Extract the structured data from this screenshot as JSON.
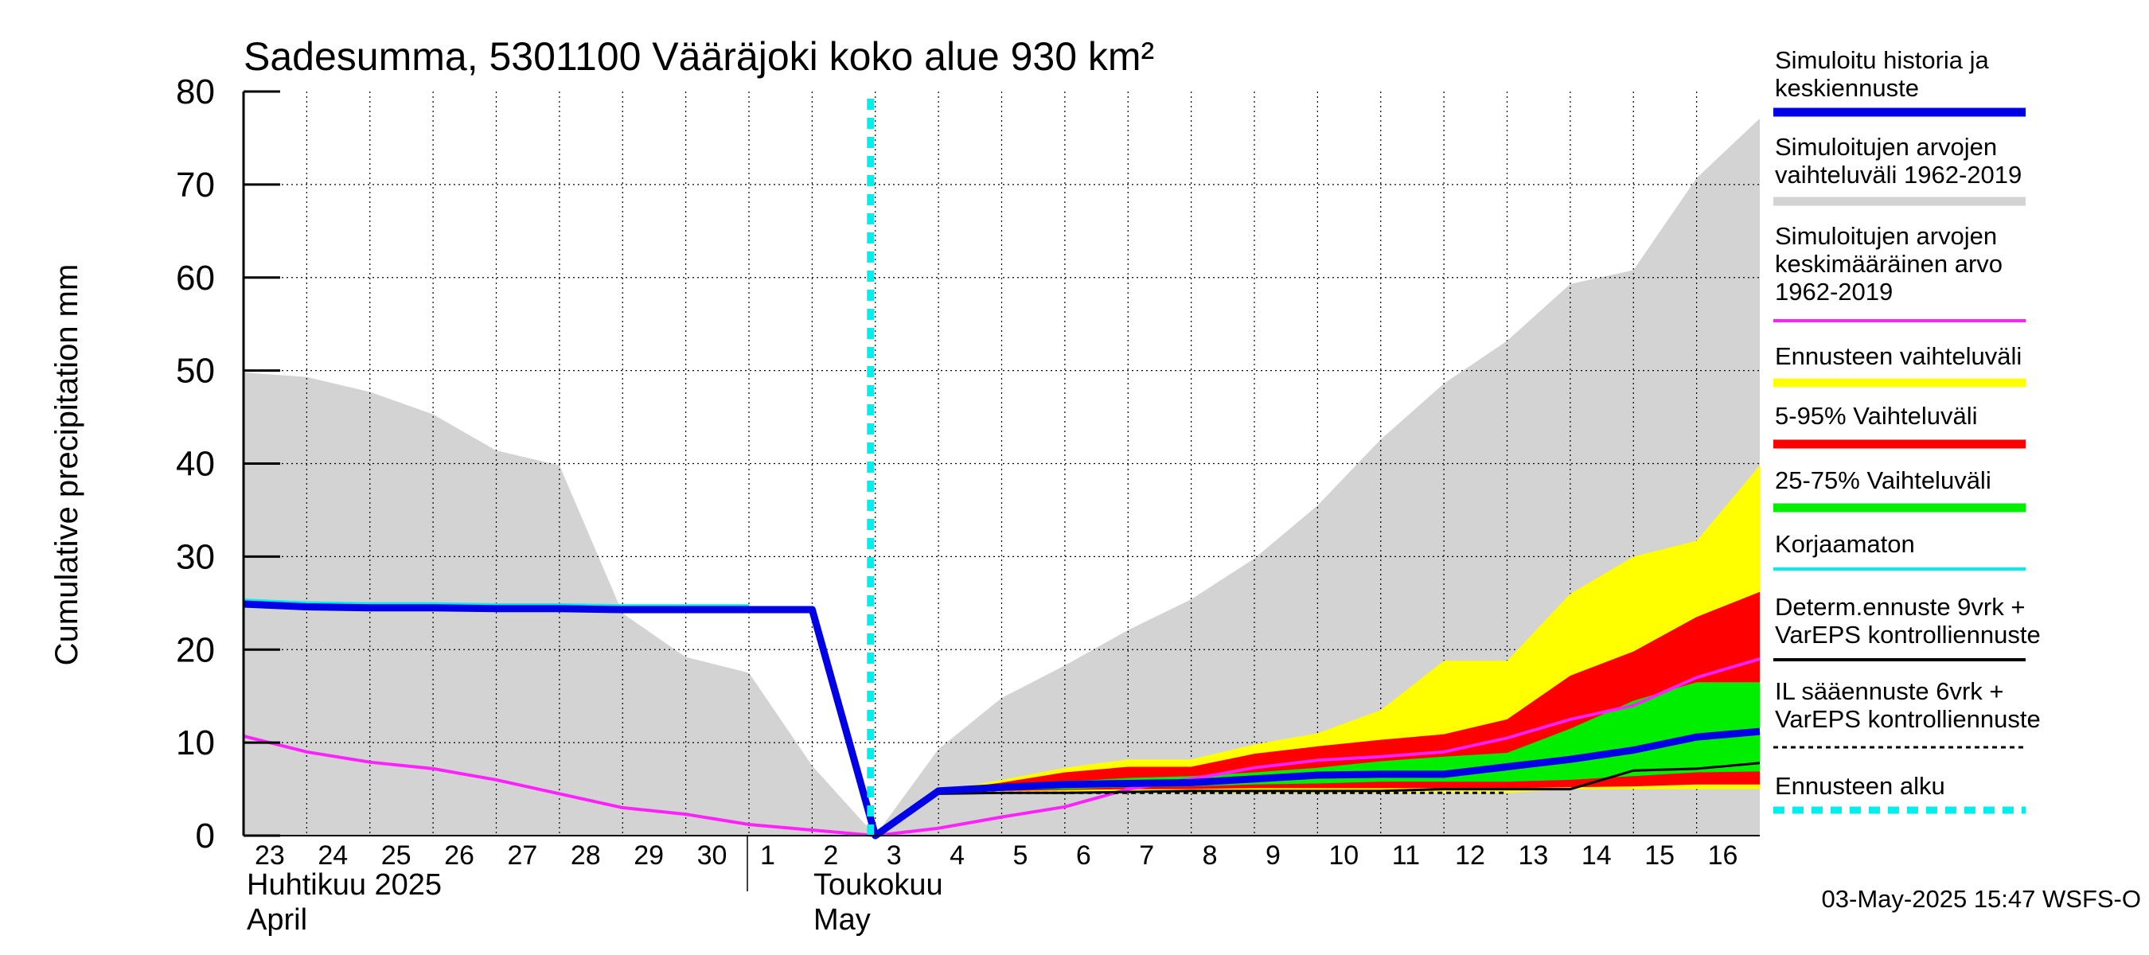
{
  "chart_data": {
    "type": "area",
    "title": "Sadesumma, 5301100 Vääräjoki koko alue 930 km²",
    "ylabel": "Cumulative precipitation   mm",
    "ylim": [
      0,
      80
    ],
    "yticks": [
      "0",
      "10",
      "20",
      "30",
      "40",
      "50",
      "60",
      "70",
      "80"
    ],
    "x_day_index_range": [
      0,
      24
    ],
    "x_labels": [
      "23",
      "24",
      "25",
      "26",
      "27",
      "28",
      "29",
      "30",
      "1",
      "2",
      "3",
      "4",
      "5",
      "6",
      "7",
      "8",
      "9",
      "10",
      "11",
      "12",
      "13",
      "14",
      "15",
      "16"
    ],
    "month_labels": [
      {
        "fi": "Huhtikuu  2025",
        "en": "April"
      },
      {
        "fi": "Toukokuu",
        "en": "May"
      }
    ],
    "forecast_start_index": 10,
    "timestamp": "03-May-2025 15:47 WSFS-O",
    "series": {
      "historical_range_upper": [
        49.8,
        49.3,
        47.7,
        45.3,
        41.4,
        39.8,
        23.9,
        19.2,
        17.5,
        7.5,
        0,
        9.3,
        14.8,
        18.3,
        22.1,
        25.4,
        29.8,
        35.5,
        42.6,
        48.6,
        53.2,
        59.3,
        60.8,
        70.7,
        77.1
      ],
      "historical_range_lower": [
        0,
        0,
        0,
        0,
        0,
        0,
        0,
        0,
        0,
        0,
        0,
        0,
        0,
        0,
        0,
        0,
        0,
        0,
        0,
        0,
        0,
        0,
        0,
        0,
        0
      ],
      "historical_mean": [
        10.7,
        9.0,
        7.9,
        7.2,
        6.0,
        4.5,
        3.0,
        2.3,
        1.2,
        0.6,
        0.0,
        0.8,
        2.0,
        3.1,
        5.0,
        6.1,
        7.3,
        8.1,
        8.5,
        9.0,
        10.5,
        12.5,
        14.0,
        17.0,
        19.0
      ],
      "simulated_history_and_median": [
        24.9,
        24.6,
        24.5,
        24.5,
        24.4,
        24.4,
        24.3,
        24.3,
        24.3,
        24.3,
        0.0,
        4.8,
        5.2,
        5.5,
        5.6,
        5.7,
        6.1,
        6.5,
        6.6,
        6.6,
        7.4,
        8.2,
        9.2,
        10.6,
        11.2
      ],
      "uncorrected": [
        25.1,
        24.8,
        24.7,
        24.7,
        24.6,
        24.6,
        24.5,
        24.5,
        24.5
      ],
      "forecast_range_upper": [
        4.8,
        6.0,
        7.3,
        8.2,
        8.2,
        9.8,
        11.0,
        13.5,
        18.8,
        18.8,
        26.0,
        30.0,
        31.7,
        39.8
      ],
      "forecast_range_lower": [
        4.5,
        4.5,
        4.6,
        4.6,
        4.6,
        4.6,
        4.6,
        4.6,
        4.6,
        4.6,
        5.0,
        5.0,
        5.0,
        5.0
      ],
      "p5_95_upper": [
        4.8,
        5.7,
        6.8,
        7.4,
        7.4,
        8.8,
        9.6,
        10.3,
        10.9,
        12.5,
        17.2,
        19.8,
        23.5,
        26.2
      ],
      "p5_95_lower": [
        4.6,
        4.8,
        4.9,
        5.0,
        5.0,
        5.1,
        5.1,
        5.1,
        5.1,
        5.1,
        5.2,
        5.3,
        5.5,
        5.5
      ],
      "p25_75_upper": [
        4.8,
        5.3,
        5.8,
        6.2,
        6.4,
        6.8,
        7.3,
        8.0,
        8.5,
        8.9,
        11.5,
        14.5,
        16.5,
        16.5
      ],
      "p25_75_lower": [
        4.6,
        4.9,
        5.0,
        5.2,
        5.3,
        5.5,
        5.6,
        5.8,
        5.8,
        5.8,
        6.0,
        6.4,
        6.8,
        6.9
      ],
      "deterministic_9d": [
        4.5,
        4.6,
        4.6,
        4.7,
        4.8,
        4.8,
        4.8,
        4.8,
        5.0,
        5.0,
        5.0,
        7.0,
        7.2,
        7.8
      ],
      "il_forecast_6d": [
        4.6,
        4.6,
        4.6,
        4.6,
        4.6,
        4.6,
        4.6,
        4.6,
        4.6,
        4.6
      ]
    },
    "legend": [
      {
        "label_lines": [
          "Simuloitu historia ja",
          "keskiennuste"
        ],
        "color": "#0000e6",
        "style": "thick"
      },
      {
        "label_lines": [
          "Simuloitujen arvojen",
          "vaihteluväli 1962-2019"
        ],
        "color": "#d3d3d3",
        "style": "thick"
      },
      {
        "label_lines": [
          "Simuloitujen arvojen",
          "keskimääräinen arvo",
          "   1962-2019"
        ],
        "color": "#ff22ff",
        "style": "thin"
      },
      {
        "label_lines": [
          "Ennusteen vaihteluväli"
        ],
        "color": "#ffff00",
        "style": "thick"
      },
      {
        "label_lines": [
          "5-95% Vaihteluväli"
        ],
        "color": "#ff0000",
        "style": "thick"
      },
      {
        "label_lines": [
          "25-75% Vaihteluväli"
        ],
        "color": "#00ee00",
        "style": "thick"
      },
      {
        "label_lines": [
          "Korjaamaton"
        ],
        "color": "#00eeee",
        "style": "thin"
      },
      {
        "label_lines": [
          "Determ.ennuste 9vrk +",
          "VarEPS kontrolliennuste"
        ],
        "color": "#000000",
        "style": "thin"
      },
      {
        "label_lines": [
          "IL sääennuste 6vrk  +",
          "  VarEPS kontrolliennuste"
        ],
        "color": "#000000",
        "style": "dashed"
      },
      {
        "label_lines": [
          "Ennusteen alku"
        ],
        "color": "#00eeee",
        "style": "dotted"
      }
    ]
  }
}
